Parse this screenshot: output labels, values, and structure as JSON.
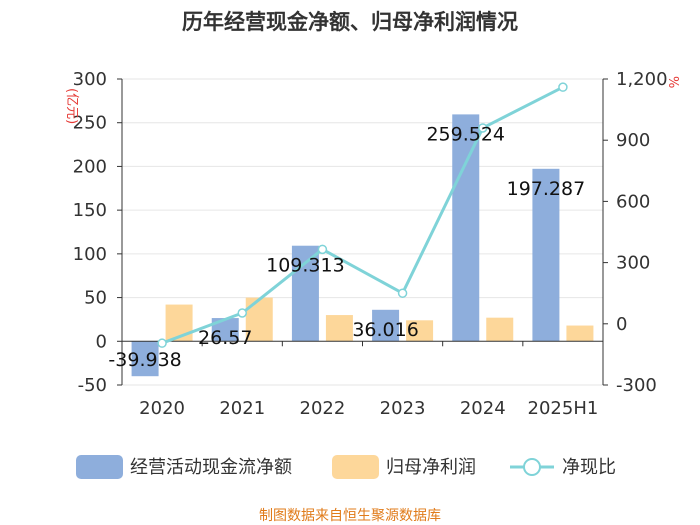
{
  "chart_data": {
    "type": "bar",
    "title": "历年经营现金净额、归母净利润情况",
    "categories": [
      "2020",
      "2021",
      "2022",
      "2023",
      "2024",
      "2025H1"
    ],
    "y_left": {
      "unit": "(亿元)",
      "ylim": [
        -50,
        300
      ],
      "ticks": [
        "300",
        "250",
        "200",
        "150",
        "100",
        "50",
        "0",
        "-50"
      ]
    },
    "y_right": {
      "unit": "%",
      "ylim": [
        -300,
        1200
      ],
      "ticks": [
        "1,200",
        "900",
        "600",
        "300",
        "0",
        "-300"
      ]
    },
    "series": [
      {
        "name": "经营活动现金流净额",
        "kind": "bar",
        "axis": "left",
        "color": "#8eaedc",
        "values": [
          -39.938,
          26.57,
          109.313,
          36.016,
          259.524,
          197.287
        ],
        "labels": [
          "-39.938",
          "26.57",
          "109.313",
          "36.016",
          "259.524",
          "197.287"
        ]
      },
      {
        "name": "归母净利润",
        "kind": "bar",
        "axis": "left",
        "color": "#fdd79a",
        "values": [
          42,
          50,
          30,
          24,
          27,
          18
        ]
      },
      {
        "name": "净现比",
        "kind": "line",
        "axis": "right",
        "color": "#7fd3d8",
        "values": [
          -95,
          53,
          365,
          150,
          960,
          1160
        ]
      }
    ],
    "grid": true,
    "legend_position": "bottom"
  },
  "source": "制图数据来自恒生聚源数据库"
}
